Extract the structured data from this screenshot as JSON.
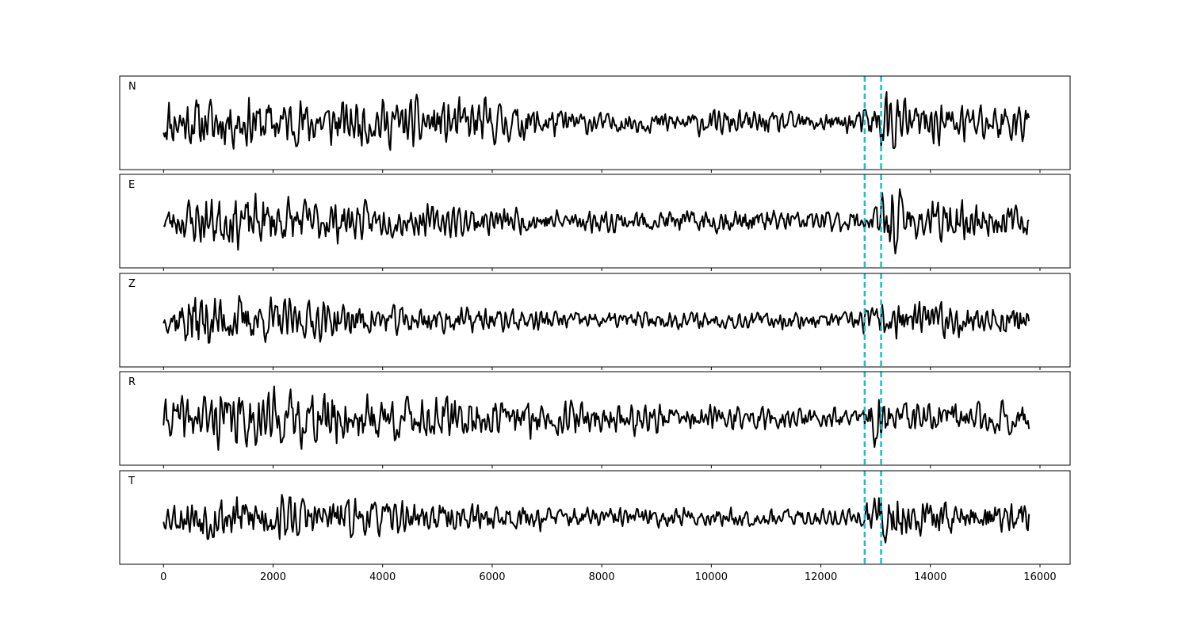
{
  "chart_data": {
    "type": "line",
    "title": "",
    "xlabel": "",
    "ylabel": "",
    "xlim": [
      -800,
      16550
    ],
    "xticks": [
      0,
      2000,
      4000,
      6000,
      8000,
      10000,
      12000,
      14000,
      16000
    ],
    "xtick_labels": [
      "0",
      "2000",
      "4000",
      "6000",
      "8000",
      "10000",
      "12000",
      "14000",
      "16000"
    ],
    "x_range": [
      0,
      15800
    ],
    "sample_count": 791,
    "line_color": "#000000",
    "grid": false,
    "legend": "none",
    "markers": {
      "color": "#17becf",
      "style": "dashed",
      "x": [
        12800,
        13100
      ]
    },
    "panels": [
      {
        "label": "N",
        "seed": 11,
        "envelope": [
          [
            0,
            0.75
          ],
          [
            6000,
            0.65
          ],
          [
            8000,
            0.3
          ],
          [
            10000,
            0.35
          ],
          [
            12500,
            0.3
          ],
          [
            12900,
            0.5
          ],
          [
            13200,
            1.0
          ],
          [
            13600,
            0.6
          ],
          [
            15800,
            0.6
          ]
        ]
      },
      {
        "label": "E",
        "seed": 23,
        "envelope": [
          [
            0,
            0.35
          ],
          [
            600,
            0.75
          ],
          [
            2200,
            0.7
          ],
          [
            3800,
            0.5
          ],
          [
            8000,
            0.3
          ],
          [
            10500,
            0.35
          ],
          [
            12800,
            0.3
          ],
          [
            13300,
            0.95
          ],
          [
            13700,
            0.6
          ],
          [
            15800,
            0.45
          ]
        ]
      },
      {
        "label": "Z",
        "seed": 37,
        "envelope": [
          [
            0,
            0.25
          ],
          [
            500,
            0.95
          ],
          [
            1000,
            0.75
          ],
          [
            2200,
            0.6
          ],
          [
            4000,
            0.45
          ],
          [
            8000,
            0.25
          ],
          [
            12500,
            0.25
          ],
          [
            13300,
            0.55
          ],
          [
            15800,
            0.4
          ]
        ]
      },
      {
        "label": "R",
        "seed": 41,
        "envelope": [
          [
            0,
            0.55
          ],
          [
            900,
            0.8
          ],
          [
            3500,
            0.8
          ],
          [
            5500,
            0.6
          ],
          [
            8000,
            0.45
          ],
          [
            12700,
            0.25
          ],
          [
            13000,
            0.85
          ],
          [
            13400,
            0.5
          ],
          [
            15800,
            0.45
          ]
        ]
      },
      {
        "label": "T",
        "seed": 53,
        "envelope": [
          [
            0,
            0.35
          ],
          [
            800,
            0.75
          ],
          [
            2200,
            0.65
          ],
          [
            4500,
            0.45
          ],
          [
            8000,
            0.3
          ],
          [
            12700,
            0.25
          ],
          [
            13200,
            1.0
          ],
          [
            13600,
            0.55
          ],
          [
            15800,
            0.45
          ]
        ]
      }
    ]
  }
}
